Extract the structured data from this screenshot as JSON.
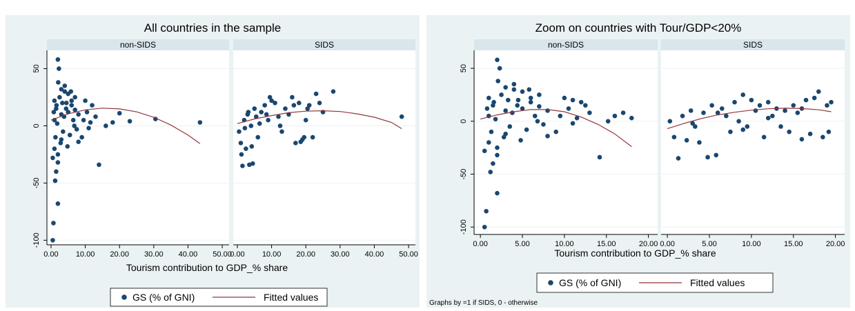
{
  "chart_data": [
    {
      "type": "scatter",
      "title": "All countries in the sample",
      "xlabel": "Tourism contribution to GDP_% share",
      "series": [
        {
          "name": "GS (% of GNI)",
          "color": "#1a476f"
        },
        {
          "name": "Fitted values",
          "color": "#90353b"
        }
      ],
      "xlim": [
        -1.2,
        52
      ],
      "ylim": [
        -104,
        66
      ],
      "xticks": [
        {
          "value": 0,
          "label": "0.00"
        },
        {
          "value": 10,
          "label": "10.00"
        },
        {
          "value": 20,
          "label": "20.00"
        },
        {
          "value": 30,
          "label": "30.00"
        },
        {
          "value": 40,
          "label": "40.00"
        },
        {
          "value": 50,
          "label": "50.00"
        }
      ],
      "yticks": [
        50,
        0,
        -50,
        -100
      ],
      "grid": true,
      "facets": [
        {
          "name": "non-SIDS",
          "scatter": {
            "x": [
              0.5,
              0.7,
              2,
              1.2,
              1.5,
              2,
              2.3,
              14,
              20,
              23,
              30.5,
              43.5,
              16,
              18,
              12,
              10,
              13,
              11,
              9,
              8,
              1,
              1.5,
              2.5,
              3,
              3.5,
              4,
              4.5,
              5,
              5.5,
              6,
              6.5,
              7,
              7.5,
              8,
              1,
              2,
              3,
              4,
              5,
              6,
              7,
              0.8,
              1.8,
              2.8,
              3.8,
              4.8,
              5.8,
              6.8,
              0.5,
              1.3,
              2.1,
              3.3,
              4.4,
              9.5,
              10.5,
              11.5,
              1,
              2,
              3,
              1.6
            ],
            "values": [
              -100,
              -85,
              -68,
              -48,
              -40,
              58,
              50,
              -34,
              11,
              4,
              6,
              3,
              0,
              3,
              18,
              22,
              8,
              -2,
              -10,
              -14,
              5,
              15,
              25,
              10,
              -5,
              30,
              20,
              12,
              -8,
              18,
              5,
              25,
              -3,
              10,
              -20,
              -25,
              -12,
              35,
              28,
              22,
              14,
              12,
              2,
              -15,
              8,
              -18,
              30,
              0,
              -28,
              -10,
              38,
              20,
              15,
              5,
              12,
              3,
              22,
              -32,
              32,
              18
            ]
          },
          "fit": {
            "x": [
              0,
              5,
              10,
              15,
              20,
              25,
              30,
              35,
              40,
              43.5
            ],
            "values": [
              5,
              10.5,
              14,
              15.5,
              14.8,
              12.2,
              7.5,
              0.7,
              -8.1,
              -15.5
            ]
          }
        },
        {
          "name": "SIDS",
          "scatter": {
            "x": [
              0.5,
              1,
              1.5,
              2,
              2.5,
              3,
              3.5,
              4,
              4.5,
              5,
              5.5,
              6,
              7,
              8,
              9,
              10,
              11,
              12,
              13,
              14,
              15,
              16,
              17,
              18,
              19,
              20,
              21,
              22,
              23,
              24,
              25,
              28,
              48,
              1.2,
              2.2,
              3.2,
              4.2,
              6.5,
              9.5,
              12.5,
              16.5,
              18.5,
              19.5,
              20.5,
              8.5
            ],
            "values": [
              -5,
              -15,
              -35,
              5,
              -20,
              10,
              -34,
              0,
              -33,
              15,
              8,
              -10,
              12,
              18,
              5,
              22,
              20,
              8,
              -5,
              15,
              10,
              25,
              -15,
              20,
              -12,
              5,
              18,
              -10,
              28,
              20,
              12,
              30,
              8,
              -25,
              -2,
              12,
              -18,
              2,
              25,
              0,
              18,
              -14,
              -10,
              15,
              10
            ]
          },
          "fit": {
            "x": [
              0,
              5,
              10,
              15,
              20,
              25,
              30,
              35,
              40,
              45,
              48
            ],
            "values": [
              2,
              6,
              9,
              11.5,
              12.8,
              13.2,
              12.5,
              10.5,
              7.5,
              3,
              -2.5
            ]
          }
        }
      ]
    },
    {
      "type": "scatter",
      "title": "Zoom on countries with Tour/GDP<20%",
      "xlabel": "Tourism contribution to GDP_% share",
      "note": "Graphs by =1 if SIDS, 0 - otherwise",
      "series": [
        {
          "name": "GS (% of GNI)",
          "color": "#1a476f"
        },
        {
          "name": "Fitted values",
          "color": "#90353b"
        }
      ],
      "xlim": [
        -0.75,
        21.1
      ],
      "ylim": [
        -107,
        67
      ],
      "xticks": [
        {
          "value": 0,
          "label": "0.00"
        },
        {
          "value": 5,
          "label": "5.00"
        },
        {
          "value": 10,
          "label": "10.00"
        },
        {
          "value": 15,
          "label": "15.00"
        },
        {
          "value": 20,
          "label": "20.00"
        }
      ],
      "yticks": [
        50,
        0,
        -50,
        -100
      ],
      "grid": true,
      "facets": [
        {
          "name": "non-SIDS",
          "scatter": {
            "x": [
              0.5,
              0.7,
              2,
              1.2,
              1.5,
              2,
              2.3,
              14.2,
              11,
              12.5,
              15.2,
              18,
              16,
              17,
              12,
              10,
              13,
              11,
              9,
              8,
              1,
              1.5,
              2.5,
              3,
              3.5,
              4,
              4.5,
              5,
              5.5,
              6,
              6.5,
              7,
              7.5,
              8,
              1,
              2,
              3,
              4,
              5,
              6,
              7,
              0.8,
              1.8,
              2.8,
              3.8,
              4.8,
              5.8,
              6.8,
              0.5,
              1.3,
              2.1,
              3.3,
              4.4,
              9.5,
              10.5,
              11.5,
              1,
              2,
              3,
              1.6
            ],
            "values": [
              -100,
              -85,
              -68,
              -48,
              -40,
              58,
              50,
              -34,
              20,
              15,
              0,
              3,
              5,
              8,
              18,
              22,
              8,
              -2,
              -10,
              -14,
              5,
              15,
              25,
              10,
              -5,
              30,
              20,
              12,
              -8,
              18,
              5,
              25,
              -3,
              10,
              -20,
              -25,
              -12,
              35,
              28,
              22,
              14,
              12,
              2,
              -15,
              8,
              -18,
              30,
              0,
              -28,
              -10,
              38,
              20,
              15,
              5,
              12,
              3,
              22,
              -32,
              32,
              18
            ]
          },
          "fit": {
            "x": [
              0,
              2,
              4,
              6,
              8,
              10,
              12,
              14,
              16,
              18
            ],
            "values": [
              2,
              6,
              9,
              11,
              11,
              9,
              4,
              -3,
              -12,
              -24
            ]
          }
        },
        {
          "name": "SIDS",
          "scatter": {
            "x": [
              0.3,
              0.8,
              1.3,
              1.8,
              2.3,
              2.8,
              3.3,
              3.8,
              4.3,
              4.8,
              5.3,
              5.8,
              6.5,
              7,
              7.5,
              8,
              8.5,
              9,
              9.5,
              10,
              10.5,
              11,
              11.5,
              12,
              12.5,
              13,
              13.5,
              14,
              14.5,
              15,
              15.5,
              16,
              16.5,
              17,
              17.5,
              18,
              18.5,
              19,
              19.5,
              19.2,
              3,
              6,
              9,
              12,
              16
            ],
            "values": [
              0,
              -15,
              -35,
              5,
              -18,
              10,
              -5,
              -20,
              8,
              -34,
              15,
              -32,
              12,
              5,
              -10,
              18,
              0,
              25,
              -5,
              20,
              10,
              15,
              -15,
              18,
              5,
              12,
              -5,
              10,
              -10,
              15,
              8,
              -17,
              20,
              -12,
              22,
              28,
              -15,
              15,
              18,
              -10,
              -2,
              8,
              -8,
              3,
              12
            ]
          },
          "fit": {
            "x": [
              0,
              2,
              4,
              6,
              8,
              10,
              12,
              14,
              16,
              18,
              19.5
            ],
            "values": [
              -7,
              -2,
              2.5,
              6,
              8.5,
              10.5,
              11.8,
              12.3,
              12,
              10.8,
              9
            ]
          }
        }
      ]
    }
  ]
}
